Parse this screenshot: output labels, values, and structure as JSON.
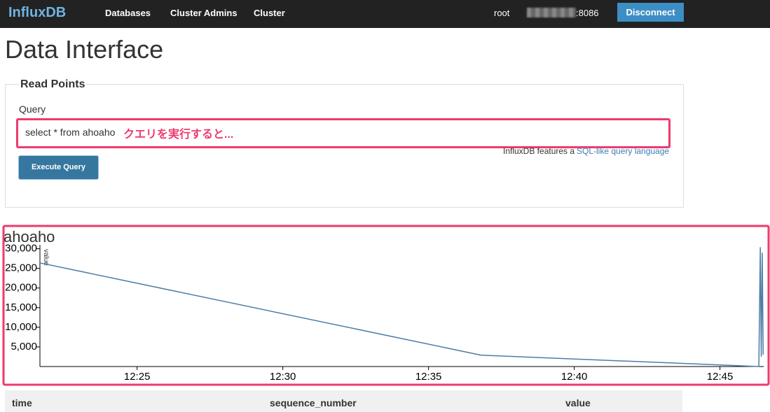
{
  "nav": {
    "brand": "InfluxDB",
    "links": [
      "Databases",
      "Cluster Admins",
      "Cluster"
    ],
    "user": "root",
    "host": ":8086",
    "button": "Disconnect"
  },
  "page_title": "Data Interface",
  "form": {
    "legend": "Read Points",
    "label": "Query",
    "query": "select * from ahoaho",
    "annotation": "クエリを実行すると...",
    "help": "InfluxDB features a",
    "help_link": "SQL-like query language",
    "button": "Execute Query"
  },
  "chart_data": {
    "type": "line",
    "title": "ahoaho",
    "y_label": "value",
    "x": [
      "12:21:40",
      "12:36:48",
      "12:46:20",
      "12:46:23",
      "12:46:25",
      "12:46:27",
      "12:46:29"
    ],
    "series": [
      {
        "color": "#4f7ca8",
        "values": [
          26400,
          2900,
          0,
          30400,
          2500,
          29000,
          3000
        ]
      }
    ],
    "xlim": [
      "12:21:40",
      "12:46:30"
    ],
    "ylim": [
      0,
      31000
    ],
    "xticks": [
      "12:25",
      "12:30",
      "12:35",
      "12:40",
      "12:45"
    ],
    "yticks": [
      {
        "value": 30000,
        "label": "30,000"
      },
      {
        "value": 25000,
        "label": "25,000"
      },
      {
        "value": 20000,
        "label": "20,000"
      },
      {
        "value": 15000,
        "label": "15,000"
      },
      {
        "value": 10000,
        "label": "10,000"
      },
      {
        "value": 5000,
        "label": "5,000"
      }
    ]
  },
  "table": {
    "headers": [
      "time",
      "sequence_number",
      "value"
    ]
  }
}
